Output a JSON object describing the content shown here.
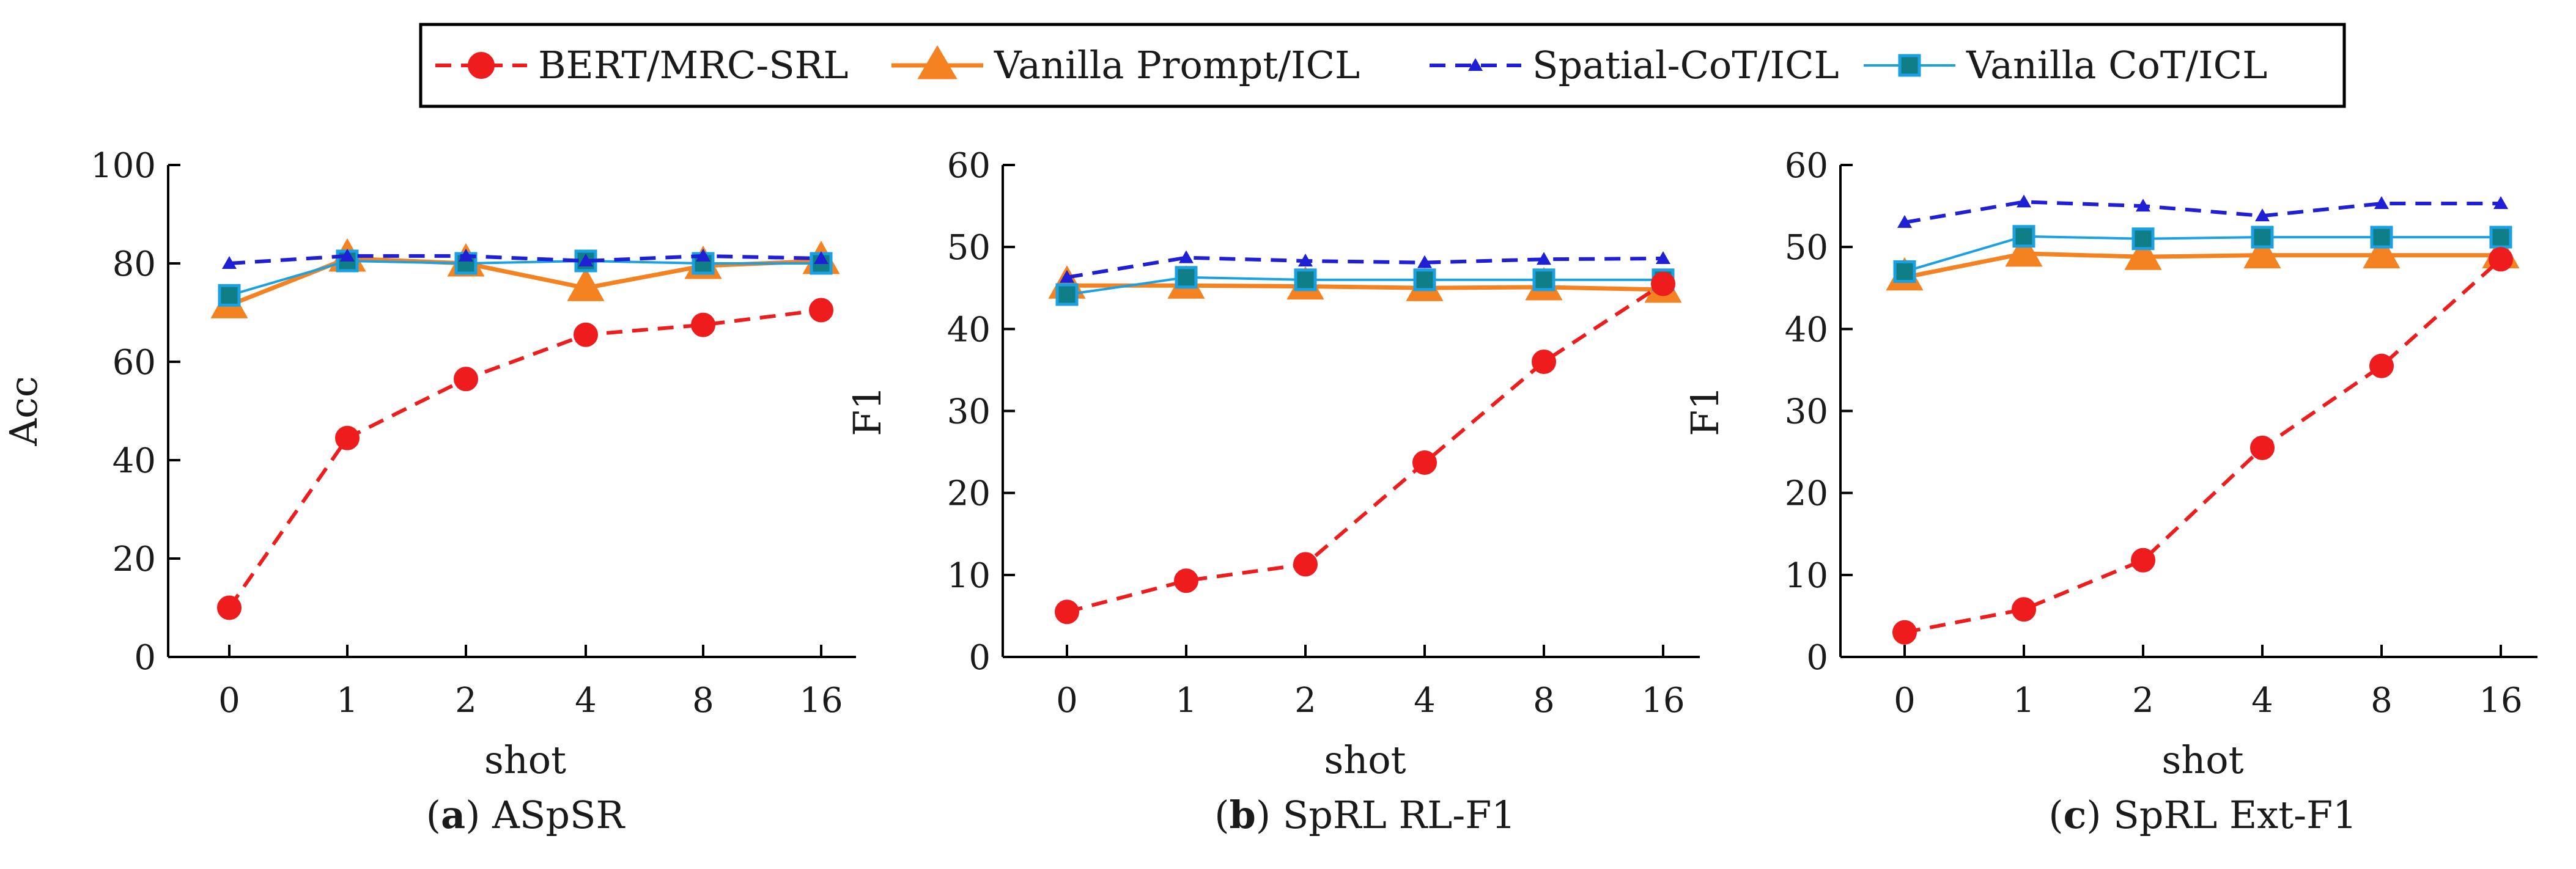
{
  "legend": {
    "entries": [
      {
        "label": "BERT/MRC-SRL",
        "color": "#ee1c1c",
        "style": "dashed",
        "marker": "circle"
      },
      {
        "label": "Vanilla Prompt/ICL",
        "color": "#f58220",
        "style": "solid",
        "marker": "triangle"
      },
      {
        "label": "Spatial-CoT/ICL",
        "color": "#1f1fd6",
        "style": "dashed",
        "marker": "small-triangle"
      },
      {
        "label": "Vanilla CoT/ICL",
        "color": "#1ba1e2",
        "style": "solid",
        "marker": "square"
      }
    ]
  },
  "chart_data": [
    {
      "type": "line",
      "caption_letter": "a",
      "caption_text": "ASpSR",
      "ylabel": "Acc",
      "xlabel": "shot",
      "categories": [
        "0",
        "1",
        "2",
        "4",
        "8",
        "16"
      ],
      "yticks": [
        "0",
        "20",
        "40",
        "60",
        "80",
        "100"
      ],
      "ylim": [
        0,
        100
      ],
      "series": [
        {
          "name": "BERT/MRC-SRL",
          "values": [
            10,
            44.5,
            56.5,
            65.5,
            67.5,
            70.5
          ]
        },
        {
          "name": "Vanilla Prompt/ICL",
          "values": [
            71.5,
            81,
            80,
            75,
            79.5,
            80.5
          ]
        },
        {
          "name": "Spatial-CoT/ICL",
          "values": [
            80,
            81.5,
            81.5,
            80.5,
            81.5,
            81
          ]
        },
        {
          "name": "Vanilla CoT/ICL",
          "values": [
            73.5,
            80.5,
            80,
            80.5,
            80,
            80
          ]
        }
      ]
    },
    {
      "type": "line",
      "caption_letter": "b",
      "caption_text": "SpRL RL-F1",
      "ylabel": "F1",
      "xlabel": "shot",
      "categories": [
        "0",
        "1",
        "2",
        "4",
        "8",
        "16"
      ],
      "yticks": [
        "0",
        "10",
        "20",
        "30",
        "40",
        "50",
        "60"
      ],
      "ylim": [
        0,
        60
      ],
      "series": [
        {
          "name": "BERT/MRC-SRL",
          "values": [
            5.5,
            9.3,
            11.3,
            23.7,
            36,
            45.5
          ]
        },
        {
          "name": "Vanilla Prompt/ICL",
          "values": [
            45.3,
            45.3,
            45.2,
            45,
            45.1,
            44.8
          ]
        },
        {
          "name": "Spatial-CoT/ICL",
          "values": [
            46.3,
            48.7,
            48.3,
            48.1,
            48.5,
            48.6
          ]
        },
        {
          "name": "Vanilla CoT/ICL",
          "values": [
            44.2,
            46.3,
            46,
            46,
            46,
            46
          ]
        }
      ]
    },
    {
      "type": "line",
      "caption_letter": "c",
      "caption_text": "SpRL Ext-F1",
      "ylabel": "F1",
      "xlabel": "shot",
      "categories": [
        "0",
        "1",
        "2",
        "4",
        "8",
        "16"
      ],
      "yticks": [
        "0",
        "10",
        "20",
        "30",
        "40",
        "50",
        "60"
      ],
      "ylim": [
        0,
        60
      ],
      "series": [
        {
          "name": "BERT/MRC-SRL",
          "values": [
            3,
            5.8,
            11.8,
            25.5,
            35.5,
            48.5
          ]
        },
        {
          "name": "Vanilla Prompt/ICL",
          "values": [
            46.3,
            49.2,
            48.8,
            49,
            49,
            49
          ]
        },
        {
          "name": "Spatial-CoT/ICL",
          "values": [
            53,
            55.5,
            55,
            53.8,
            55.3,
            55.3
          ]
        },
        {
          "name": "Vanilla CoT/ICL",
          "values": [
            47,
            51.3,
            51,
            51.2,
            51.2,
            51.2
          ]
        }
      ]
    }
  ]
}
